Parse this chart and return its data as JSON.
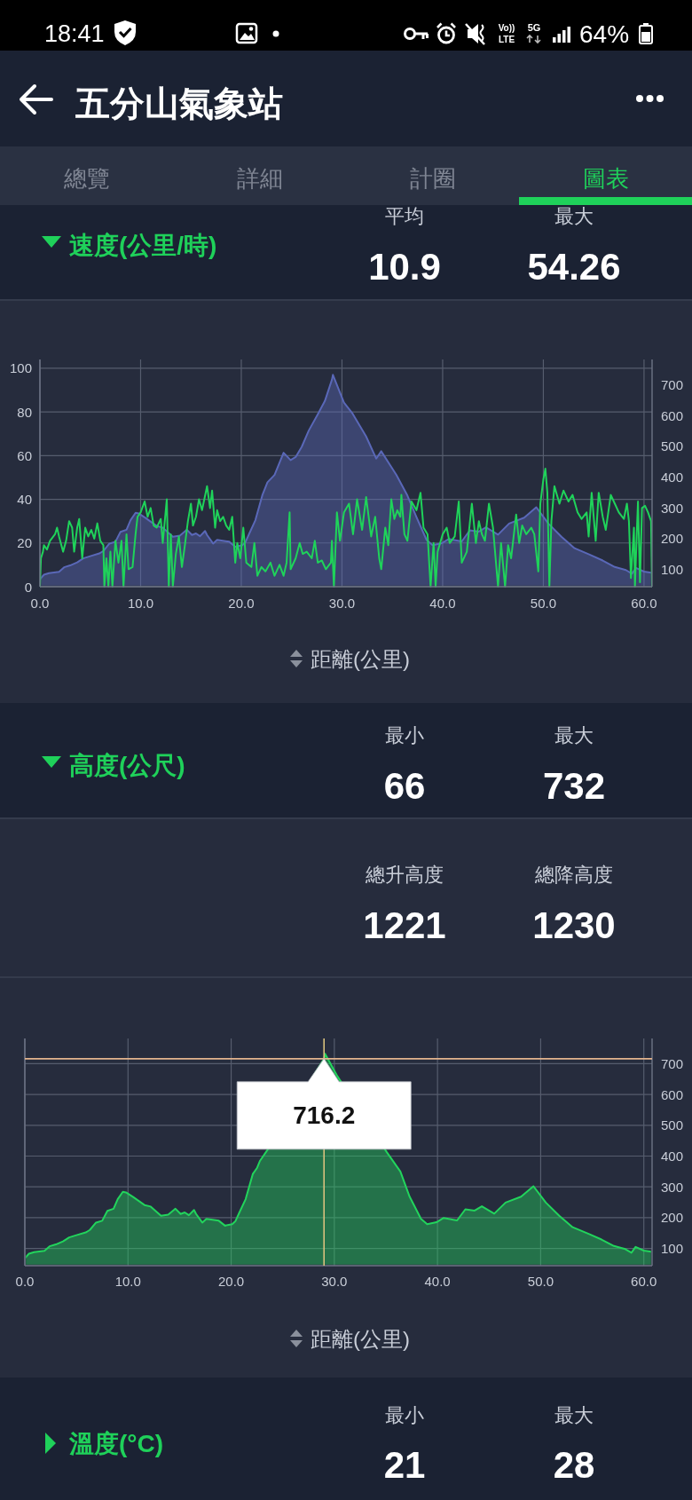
{
  "chart_data": [
    {
      "type": "other",
      "annotations": [
        "18:41",
        "Vo))",
        "LTE",
        "5G",
        "64%"
      ]
    },
    {
      "type": "other",
      "title": "五分山氣象站",
      "annotations": [
        "總覽",
        "詳細",
        "計圈",
        "圖表"
      ]
    },
    {
      "type": "other",
      "title": "速度(公里/時)",
      "annotations": [
        "平均",
        "10.9",
        "最大",
        "54.26"
      ]
    },
    {
      "type": "line",
      "xlabel": "距離(公里)",
      "xlim": [
        0,
        60.8
      ],
      "xticks": [
        {
          "value": 0,
          "label": "0.0"
        },
        {
          "value": 10,
          "label": "10.0"
        },
        {
          "value": 20,
          "label": "20.0"
        },
        {
          "value": 30,
          "label": "30.0"
        },
        {
          "value": 40,
          "label": "40.0"
        },
        {
          "value": 50,
          "label": "50.0"
        },
        {
          "value": 60,
          "label": "60.0"
        }
      ],
      "ylim": [
        0,
        104
      ],
      "yticks": [
        0,
        20,
        40,
        60,
        80,
        100
      ],
      "y2lim": [
        44,
        782
      ],
      "y2ticks": [
        100,
        200,
        300,
        400,
        500,
        600,
        700
      ],
      "grid": true,
      "series": [
        {
          "type": "area",
          "axis": "y2",
          "color": "#5a68b8",
          "x": [
            0,
            0.4,
            0.9,
            1.9,
            2.4,
            3.0,
            3.7,
            4.3,
            5.0,
            5.9,
            6.3,
            6.9,
            7.5,
            8.0,
            8.6,
            9.0,
            9.5,
            9.8,
            10.5,
            11.6,
            12.2,
            13.2,
            13.9,
            14.6,
            15.1,
            15.5,
            15.9,
            16.4,
            16.6,
            17.2,
            17.6,
            18.8,
            19.4,
            20.1,
            20.4,
            20.8,
            21.4,
            22.1,
            22.6,
            23.3,
            24.2,
            24.9,
            25.4,
            26.0,
            26.7,
            27.6,
            28.3,
            29.0,
            29.1,
            30.2,
            31.0,
            32.4,
            33.4,
            33.9,
            35.4,
            36.5,
            37.4,
            38.4,
            39.0,
            39.9,
            40.6,
            41.9,
            42.7,
            43.6,
            44.3,
            45.5,
            46.6,
            48.1,
            49.3,
            50.5,
            51.8,
            53.1,
            54.6,
            55.9,
            57.1,
            58.2,
            58.8,
            59.2,
            60.0,
            60.8
          ],
          "values": [
            68,
            83,
            88,
            92,
            107,
            113,
            123,
            136,
            143,
            152,
            160,
            184,
            190,
            222,
            229,
            260,
            284,
            282,
            267,
            241,
            236,
            206,
            210,
            229,
            212,
            217,
            208,
            225,
            212,
            184,
            196,
            190,
            174,
            179,
            188,
            217,
            260,
            342,
            383,
            407,
            479,
            455,
            465,
            498,
            551,
            604,
            647,
            716,
            732,
            642,
            609,
            532,
            460,
            484,
            407,
            340,
            270,
            196,
            179,
            185,
            199,
            191,
            227,
            223,
            237,
            213,
            249,
            268,
            302,
            249,
            206,
            169,
            148,
            129,
            108,
            98,
            86,
            105,
            93,
            89
          ]
        },
        {
          "type": "line",
          "color": "#1fd35a",
          "x": [
            0,
            0.1,
            0.3,
            0.4,
            0.7,
            1.0,
            1.5,
            1.7,
            1.9,
            2.3,
            2.6,
            2.9,
            3.2,
            3.4,
            3.7,
            3.9,
            4.2,
            4.5,
            4.8,
            5.1,
            5.4,
            5.7,
            6.0,
            6.3,
            6.4,
            6.6,
            6.8,
            7.0,
            7.2,
            7.5,
            7.8,
            8.1,
            8.3,
            8.6,
            8.8,
            9.2,
            9.5,
            9.7,
            10.0,
            10.4,
            10.7,
            11.0,
            11.3,
            11.6,
            12.0,
            12.2,
            12.6,
            12.8,
            13.0,
            13.2,
            13.5,
            13.8,
            14.1,
            14.4,
            14.7,
            15.0,
            15.2,
            15.5,
            15.8,
            16.1,
            16.6,
            16.9,
            17.1,
            17.4,
            17.6,
            17.9,
            18.2,
            18.5,
            18.8,
            19.1,
            19.4,
            19.6,
            19.9,
            20.2,
            20.5,
            21.0,
            21.3,
            21.6,
            22.0,
            22.4,
            22.9,
            23.3,
            23.8,
            24.2,
            24.5,
            24.8,
            24.9,
            25.4,
            25.8,
            26.1,
            26.5,
            27.0,
            27.3,
            27.6,
            28.0,
            28.4,
            28.9,
            29.0,
            29.2,
            29.5,
            29.8,
            30.2,
            30.7,
            31.1,
            31.5,
            32.0,
            32.4,
            32.9,
            33.3,
            33.7,
            33.9,
            34.3,
            34.6,
            34.9,
            35.2,
            35.5,
            35.8,
            35.9,
            36.2,
            36.5,
            36.9,
            37.4,
            37.8,
            38.1,
            38.5,
            38.8,
            39.1,
            39.3,
            39.5,
            40.0,
            40.4,
            40.7,
            41.2,
            41.6,
            41.9,
            42.4,
            42.9,
            43.3,
            43.6,
            43.9,
            44.2,
            44.6,
            45.0,
            45.5,
            45.8,
            46.2,
            46.5,
            46.8,
            47.3,
            47.6,
            47.9,
            48.3,
            48.8,
            49.1,
            49.5,
            49.7,
            50.0,
            50.2,
            50.4,
            50.6,
            50.8,
            51.1,
            51.6,
            52.0,
            52.5,
            52.9,
            53.4,
            53.8,
            54.3,
            54.5,
            54.8,
            55.2,
            55.5,
            55.9,
            56.2,
            56.7,
            57.1,
            57.5,
            58.0,
            58.3,
            58.5,
            58.7,
            59.0,
            59.1,
            59.3,
            59.4,
            59.6,
            59.8,
            60.1,
            60.4,
            60.7,
            60.8
          ],
          "values": [
            0,
            13,
            16,
            19,
            17,
            21,
            24,
            27,
            23,
            16,
            21,
            30,
            27,
            16,
            27,
            31,
            13,
            27,
            23,
            26,
            22,
            29,
            21,
            19,
            0,
            13,
            0,
            16,
            0,
            21,
            11,
            21,
            0,
            24,
            8,
            9,
            24,
            32,
            34,
            39,
            32,
            36,
            28,
            27,
            31,
            20,
            40,
            0,
            24,
            0,
            15,
            23,
            9,
            19,
            30,
            38,
            28,
            32,
            40,
            35,
            46,
            36,
            44,
            27,
            35,
            30,
            32,
            28,
            26,
            32,
            11,
            20,
            13,
            27,
            11,
            9,
            20,
            5,
            9,
            7,
            11,
            5,
            10,
            5,
            11,
            34,
            8,
            13,
            20,
            15,
            16,
            13,
            21,
            11,
            12,
            8,
            11,
            21,
            0,
            34,
            21,
            34,
            38,
            24,
            40,
            26,
            41,
            23,
            32,
            13,
            8,
            27,
            19,
            40,
            31,
            35,
            32,
            42,
            24,
            21,
            39,
            35,
            43,
            27,
            24,
            0,
            20,
            0,
            16,
            24,
            27,
            20,
            23,
            39,
            11,
            16,
            38,
            20,
            30,
            24,
            21,
            38,
            27,
            0,
            20,
            0,
            19,
            13,
            33,
            20,
            28,
            24,
            27,
            24,
            7,
            38,
            49,
            54,
            43,
            0,
            30,
            46,
            38,
            44,
            39,
            42,
            34,
            31,
            34,
            23,
            43,
            21,
            43,
            32,
            26,
            42,
            38,
            34,
            31,
            38,
            30,
            4,
            27,
            0,
            27,
            39,
            2,
            36,
            37,
            34,
            30,
            0
          ]
        }
      ]
    },
    {
      "type": "other",
      "title": "高度(公尺)",
      "annotations": [
        "最小",
        "66",
        "最大",
        "732"
      ]
    },
    {
      "type": "other",
      "annotations": [
        "總升高度",
        "1221",
        "總降高度",
        "1230"
      ]
    },
    {
      "type": "area",
      "xlabel": "距離(公里)",
      "xlim": [
        0,
        60.8
      ],
      "xticks": [
        {
          "value": 0,
          "label": "0.0"
        },
        {
          "value": 10,
          "label": "10.0"
        },
        {
          "value": 20,
          "label": "20.0"
        },
        {
          "value": 30,
          "label": "30.0"
        },
        {
          "value": 40,
          "label": "40.0"
        },
        {
          "value": 50,
          "label": "50.0"
        },
        {
          "value": 60,
          "label": "60.0"
        }
      ],
      "y2lim": [
        44,
        782
      ],
      "y2ticks": [
        100,
        200,
        300,
        400,
        500,
        600,
        700
      ],
      "grid": true,
      "ref_lines": [
        {
          "axis": "x",
          "value": 29.0,
          "color": "#d9c27e"
        },
        {
          "axis": "y2",
          "value": 716.2,
          "color": "#e3b48e"
        }
      ],
      "annotations": [
        "716.2"
      ],
      "series": [
        {
          "axis": "y2",
          "color": "#22d45c",
          "x": [
            0,
            0.4,
            0.9,
            1.9,
            2.4,
            3.0,
            3.7,
            4.3,
            5.0,
            5.9,
            6.3,
            6.9,
            7.5,
            8.0,
            8.6,
            9.0,
            9.5,
            9.8,
            10.5,
            11.6,
            12.2,
            13.2,
            13.9,
            14.6,
            15.1,
            15.5,
            15.9,
            16.4,
            16.6,
            17.2,
            17.6,
            18.8,
            19.4,
            20.1,
            20.4,
            20.8,
            21.4,
            22.1,
            22.5,
            22.8,
            23.5,
            29.0,
            29.1,
            30.3,
            35.1,
            36.4,
            37.3,
            38.4,
            39.0,
            39.9,
            40.6,
            41.9,
            42.7,
            43.6,
            44.3,
            45.5,
            46.6,
            48.1,
            49.3,
            50.5,
            51.8,
            53.1,
            54.6,
            55.9,
            57.1,
            58.2,
            58.8,
            59.2,
            60.0,
            60.8
          ],
          "values": [
            68,
            83,
            88,
            92,
            107,
            113,
            123,
            136,
            143,
            152,
            160,
            184,
            190,
            222,
            229,
            260,
            284,
            282,
            267,
            241,
            236,
            206,
            210,
            229,
            212,
            217,
            208,
            225,
            212,
            184,
            196,
            190,
            174,
            179,
            188,
            217,
            260,
            342,
            361,
            385,
            419,
            716,
            732,
            659,
            412,
            350,
            268,
            196,
            179,
            185,
            199,
            191,
            227,
            223,
            237,
            213,
            249,
            268,
            302,
            249,
            206,
            169,
            148,
            129,
            108,
            98,
            86,
            105,
            93,
            89
          ]
        }
      ]
    },
    {
      "type": "other",
      "title": "溫度(°C)",
      "annotations": [
        "最小",
        "21",
        "最大",
        "28"
      ]
    }
  ]
}
